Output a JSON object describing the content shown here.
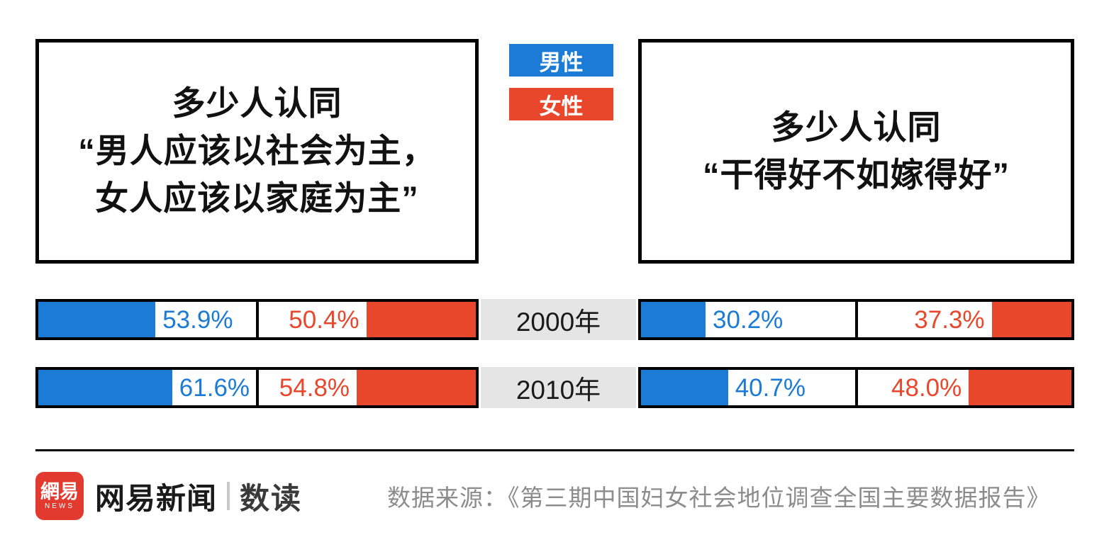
{
  "colors": {
    "male": "#1b7bd5",
    "female": "#e8472c",
    "year_strip": "#e5e5e5",
    "logo_red": "#e23a2e"
  },
  "legend": {
    "male_label": "男性",
    "female_label": "女性"
  },
  "left_panel": {
    "title_lines": [
      "多少人认同",
      "“男人应该以社会为主，",
      "女人应该以家庭为主”"
    ]
  },
  "right_panel": {
    "title_lines": [
      "多少人认同",
      "“干得好不如嫁得好”"
    ]
  },
  "rows": [
    {
      "year": "2000年",
      "left": {
        "male": {
          "value": 53.9,
          "label": "53.9%"
        },
        "female": {
          "value": 50.4,
          "label": "50.4%"
        }
      },
      "right": {
        "male": {
          "value": 30.2,
          "label": "30.2%"
        },
        "female": {
          "value": 37.3,
          "label": "37.3%"
        }
      }
    },
    {
      "year": "2010年",
      "left": {
        "male": {
          "value": 61.6,
          "label": "61.6%"
        },
        "female": {
          "value": 54.8,
          "label": "54.8%"
        }
      },
      "right": {
        "male": {
          "value": 40.7,
          "label": "40.7%"
        },
        "female": {
          "value": 48.0,
          "label": "48.0%"
        }
      }
    }
  ],
  "footer": {
    "logo_text": "網易",
    "logo_sub": "NEWS",
    "brand": "网易新闻",
    "sub_brand": "数读",
    "source": "数据来源：《第三期中国妇女社会地位调查全国主要数据报告》"
  },
  "chart_data": [
    {
      "type": "bar",
      "title": "多少人认同“男人应该以社会为主，女人应该以家庭为主”",
      "categories": [
        "2000年",
        "2010年"
      ],
      "series": [
        {
          "name": "男性",
          "values": [
            53.9,
            61.6
          ]
        },
        {
          "name": "女性",
          "values": [
            50.4,
            54.8
          ]
        }
      ],
      "unit": "%",
      "xlim": [
        0,
        100
      ],
      "legend_position": "top-center",
      "grid": false
    },
    {
      "type": "bar",
      "title": "多少人认同“干得好不如嫁得好”",
      "categories": [
        "2000年",
        "2010年"
      ],
      "series": [
        {
          "name": "男性",
          "values": [
            30.2,
            40.7
          ]
        },
        {
          "name": "女性",
          "values": [
            37.3,
            48.0
          ]
        }
      ],
      "unit": "%",
      "xlim": [
        0,
        100
      ],
      "legend_position": "top-center",
      "grid": false
    }
  ]
}
